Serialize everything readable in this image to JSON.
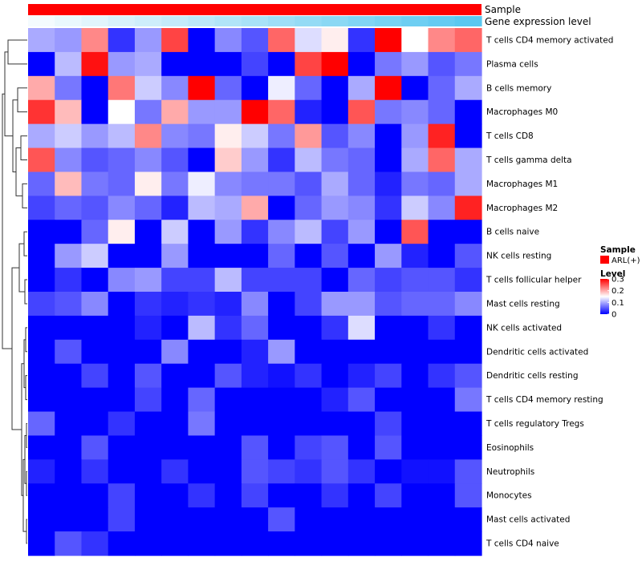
{
  "chart_data": {
    "type": "heatmap",
    "annotation_tracks": [
      {
        "name": "Sample",
        "color": "#ff0000"
      },
      {
        "name": "Gene expression level",
        "gradient": [
          "#f4fbfe",
          "#5bc8f0"
        ]
      }
    ],
    "rows": [
      "T cells CD4 memory activated",
      "Plasma cells",
      "B cells memory",
      "Macrophages M0",
      "T cells CD8",
      "T cells gamma delta",
      "Macrophages M1",
      "Macrophages M2",
      "B cells naive",
      "NK cells resting",
      "T cells follicular helper",
      "Mast cells resting",
      "NK cells activated",
      "Dendritic cells activated",
      "Dendritic cells resting",
      "T cells CD4 memory resting",
      "T cells regulatory  Tregs",
      "Eosinophils",
      "Neutrophils",
      "Monocytes",
      "Mast cells activated",
      "T cells CD4 naive"
    ],
    "n_columns": 17,
    "values": [
      [
        0.1,
        0.09,
        0.22,
        0.03,
        0.09,
        0.26,
        0.0,
        0.08,
        0.05,
        0.24,
        0.13,
        0.16,
        0.03,
        0.3,
        0.15,
        0.22,
        0.24
      ],
      [
        0.0,
        0.11,
        0.29,
        0.09,
        0.1,
        0.0,
        0.0,
        0.0,
        0.04,
        0.0,
        0.26,
        0.3,
        0.0,
        0.07,
        0.09,
        0.05,
        0.07
      ],
      [
        0.2,
        0.07,
        0.0,
        0.23,
        0.12,
        0.08,
        0.3,
        0.06,
        0.0,
        0.14,
        0.06,
        0.0,
        0.1,
        0.3,
        0.0,
        0.06,
        0.1
      ],
      [
        0.27,
        0.19,
        0.0,
        0.15,
        0.07,
        0.2,
        0.09,
        0.09,
        0.3,
        0.24,
        0.02,
        0.0,
        0.25,
        0.07,
        0.08,
        0.06,
        0.0
      ],
      [
        0.1,
        0.12,
        0.09,
        0.11,
        0.22,
        0.08,
        0.07,
        0.16,
        0.12,
        0.07,
        0.21,
        0.05,
        0.08,
        0.0,
        0.09,
        0.28,
        0.0
      ],
      [
        0.25,
        0.08,
        0.05,
        0.06,
        0.08,
        0.05,
        0.0,
        0.18,
        0.09,
        0.03,
        0.11,
        0.07,
        0.06,
        0.0,
        0.1,
        0.24,
        0.1
      ],
      [
        0.06,
        0.19,
        0.07,
        0.06,
        0.16,
        0.07,
        0.14,
        0.08,
        0.07,
        0.07,
        0.05,
        0.1,
        0.06,
        0.02,
        0.07,
        0.06,
        0.1
      ],
      [
        0.04,
        0.06,
        0.05,
        0.08,
        0.06,
        0.02,
        0.11,
        0.1,
        0.2,
        0.0,
        0.06,
        0.09,
        0.08,
        0.03,
        0.12,
        0.08,
        0.28
      ],
      [
        0.0,
        0.0,
        0.06,
        0.16,
        0.0,
        0.12,
        0.0,
        0.09,
        0.03,
        0.08,
        0.11,
        0.04,
        0.09,
        0.0,
        0.25,
        0.0,
        0.0
      ],
      [
        0.0,
        0.09,
        0.12,
        0.0,
        0.0,
        0.09,
        0.0,
        0.0,
        0.0,
        0.06,
        0.0,
        0.05,
        0.0,
        0.09,
        0.02,
        0.0,
        0.05
      ],
      [
        0.0,
        0.03,
        0.0,
        0.08,
        0.09,
        0.04,
        0.04,
        0.11,
        0.04,
        0.04,
        0.04,
        0.0,
        0.06,
        0.04,
        0.05,
        0.05,
        0.03
      ],
      [
        0.04,
        0.05,
        0.08,
        0.0,
        0.03,
        0.02,
        0.03,
        0.02,
        0.08,
        0.0,
        0.04,
        0.09,
        0.09,
        0.05,
        0.06,
        0.06,
        0.08
      ],
      [
        0.0,
        0.0,
        0.0,
        0.0,
        0.02,
        0.0,
        0.11,
        0.03,
        0.06,
        0.0,
        0.0,
        0.03,
        0.13,
        0.0,
        0.0,
        0.03,
        0.0
      ],
      [
        0.0,
        0.05,
        0.0,
        0.0,
        0.0,
        0.08,
        0.0,
        0.0,
        0.02,
        0.09,
        0.0,
        0.0,
        0.0,
        0.0,
        0.0,
        0.0,
        0.0
      ],
      [
        0.0,
        0.0,
        0.04,
        0.0,
        0.05,
        0.0,
        0.0,
        0.05,
        0.02,
        0.01,
        0.03,
        0.0,
        0.02,
        0.04,
        0.0,
        0.03,
        0.05
      ],
      [
        0.0,
        0.0,
        0.0,
        0.0,
        0.04,
        0.0,
        0.06,
        0.0,
        0.0,
        0.0,
        0.0,
        0.02,
        0.05,
        0.0,
        0.0,
        0.0,
        0.07
      ],
      [
        0.06,
        0.0,
        0.0,
        0.03,
        0.0,
        0.0,
        0.07,
        0.0,
        0.0,
        0.0,
        0.0,
        0.0,
        0.0,
        0.04,
        0.0,
        0.0,
        0.0
      ],
      [
        0.0,
        0.0,
        0.05,
        0.0,
        0.0,
        0.0,
        0.0,
        0.0,
        0.05,
        0.0,
        0.04,
        0.05,
        0.0,
        0.05,
        0.0,
        0.0,
        0.0
      ],
      [
        0.02,
        0.0,
        0.03,
        0.0,
        0.0,
        0.03,
        0.0,
        0.0,
        0.05,
        0.04,
        0.03,
        0.05,
        0.03,
        0.0,
        0.01,
        0.01,
        0.05
      ],
      [
        0.0,
        0.0,
        0.0,
        0.04,
        0.0,
        0.0,
        0.03,
        0.0,
        0.04,
        0.0,
        0.0,
        0.03,
        0.0,
        0.04,
        0.0,
        0.0,
        0.05
      ],
      [
        0.0,
        0.0,
        0.0,
        0.04,
        0.0,
        0.0,
        0.0,
        0.0,
        0.0,
        0.05,
        0.0,
        0.0,
        0.0,
        0.0,
        0.0,
        0.0,
        0.0
      ],
      [
        0.0,
        0.05,
        0.03,
        0.0,
        0.0,
        0.0,
        0.0,
        0.0,
        0.0,
        0.0,
        0.0,
        0.0,
        0.0,
        0.0,
        0.0,
        0.0,
        0.0
      ]
    ],
    "color_scale": {
      "domain": [
        0,
        0.15,
        0.3
      ],
      "colors": [
        "#0000ff",
        "#ffffff",
        "#ff0000"
      ]
    },
    "legend": {
      "sample_title": "Sample",
      "sample_entry": "ARL(+)",
      "sample_color": "#ff0000",
      "level_title": "Level",
      "level_ticks": [
        "0.3",
        "0.2",
        "0.1",
        "0"
      ],
      "level_tick_values": [
        0.3,
        0.2,
        0.1,
        0
      ]
    },
    "dendrogram": "row clustering tree on the left side"
  }
}
